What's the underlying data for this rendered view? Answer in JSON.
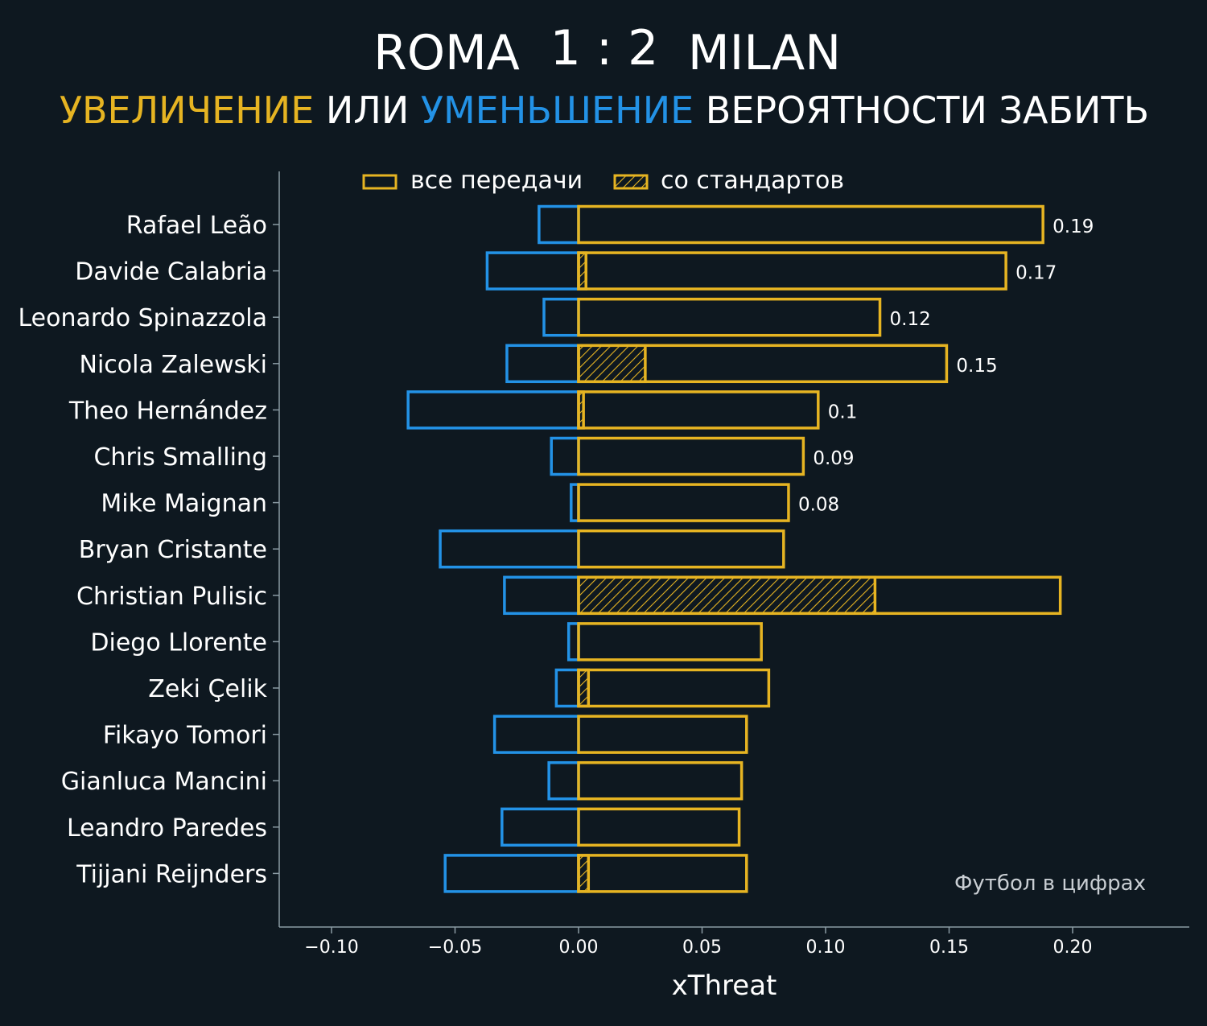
{
  "header": {
    "team_home": "ROMA",
    "score": "1 : 2",
    "team_away": "MILAN",
    "subtitle_part1": "УВЕЛИЧЕНИЕ",
    "subtitle_part2": " ИЛИ ",
    "subtitle_part3": "УМЕНЬШЕНИЕ",
    "subtitle_part4": " ВЕРОЯТНОСТИ ЗАБИТЬ"
  },
  "legend": {
    "all_passes": "все передачи",
    "set_pieces": "со стандартов",
    "placement": "top"
  },
  "credit": "Футбол в цифрах",
  "colors": {
    "background": "#0e1820",
    "increase": "#e6b422",
    "decrease": "#2392e6",
    "axis": "#8a9aa3",
    "text": "#ffffff"
  },
  "chart_data": {
    "type": "bar",
    "orientation": "horizontal",
    "xlabel": "xThreat",
    "xlim": [
      -0.122,
      0.247
    ],
    "xticks": [
      -0.1,
      -0.05,
      0.0,
      0.05,
      0.1,
      0.15,
      0.2
    ],
    "xtick_labels": [
      "−0.10",
      "−0.05",
      "0.00",
      "0.05",
      "0.10",
      "0.15",
      "0.20"
    ],
    "grid": false,
    "categories": [
      "Rafael Leão",
      "Davide Calabria",
      "Leonardo Spinazzola",
      "Nicola Zalewski",
      "Theo Hernández",
      "Chris Smalling",
      "Mike Maignan",
      "Bryan Cristante",
      "Christian Pulisic",
      "Diego Llorente",
      "Zeki Çelik",
      "Fikayo Tomori",
      "Gianluca Mancini",
      "Leandro Paredes",
      "Tijjani Reijnders"
    ],
    "series": [
      {
        "name": "все передачи",
        "positive": [
          0.188,
          0.173,
          0.122,
          0.149,
          0.097,
          0.091,
          0.085,
          0.083,
          0.195,
          0.074,
          0.077,
          0.068,
          0.066,
          0.065,
          0.068
        ],
        "negative": [
          -0.016,
          -0.037,
          -0.014,
          -0.029,
          -0.069,
          -0.011,
          -0.003,
          -0.056,
          -0.03,
          -0.004,
          -0.009,
          -0.034,
          -0.012,
          -0.031,
          -0.054
        ]
      },
      {
        "name": "со стандартов",
        "positive": [
          0.0,
          0.003,
          0.0,
          0.027,
          0.002,
          0.0,
          0.0,
          0.0,
          0.12,
          0.0,
          0.004,
          0.0,
          0.0,
          0.0,
          0.004
        ]
      }
    ],
    "data_labels": [
      "0.19",
      "0.17",
      "0.12",
      "0.15",
      "0.1",
      "0.09",
      "0.08",
      "",
      "",
      "",
      "",
      "",
      "",
      "",
      ""
    ]
  }
}
